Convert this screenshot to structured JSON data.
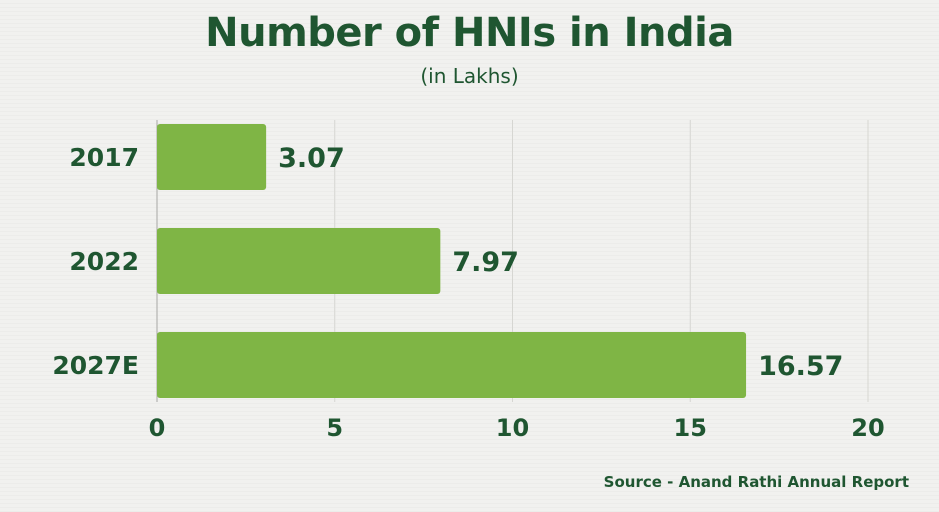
{
  "colors": {
    "background": "#f1f1ef",
    "text": "#1f5631",
    "bar": "#7fb545",
    "grid": "#d6d6d2"
  },
  "chart_data": {
    "type": "bar",
    "orientation": "horizontal",
    "title": "Number of HNIs in India",
    "subtitle": "(in Lakhs)",
    "categories": [
      "2017",
      "2022",
      "2027E"
    ],
    "values": [
      3.07,
      7.97,
      16.57
    ],
    "value_labels": [
      "3.07",
      "7.97",
      "16.57"
    ],
    "x_ticks": [
      "0",
      "5",
      "10",
      "15",
      "20"
    ],
    "xlim": [
      0,
      20
    ],
    "grid": true,
    "legend": "none",
    "source": "Source - Anand Rathi Annual Report"
  }
}
